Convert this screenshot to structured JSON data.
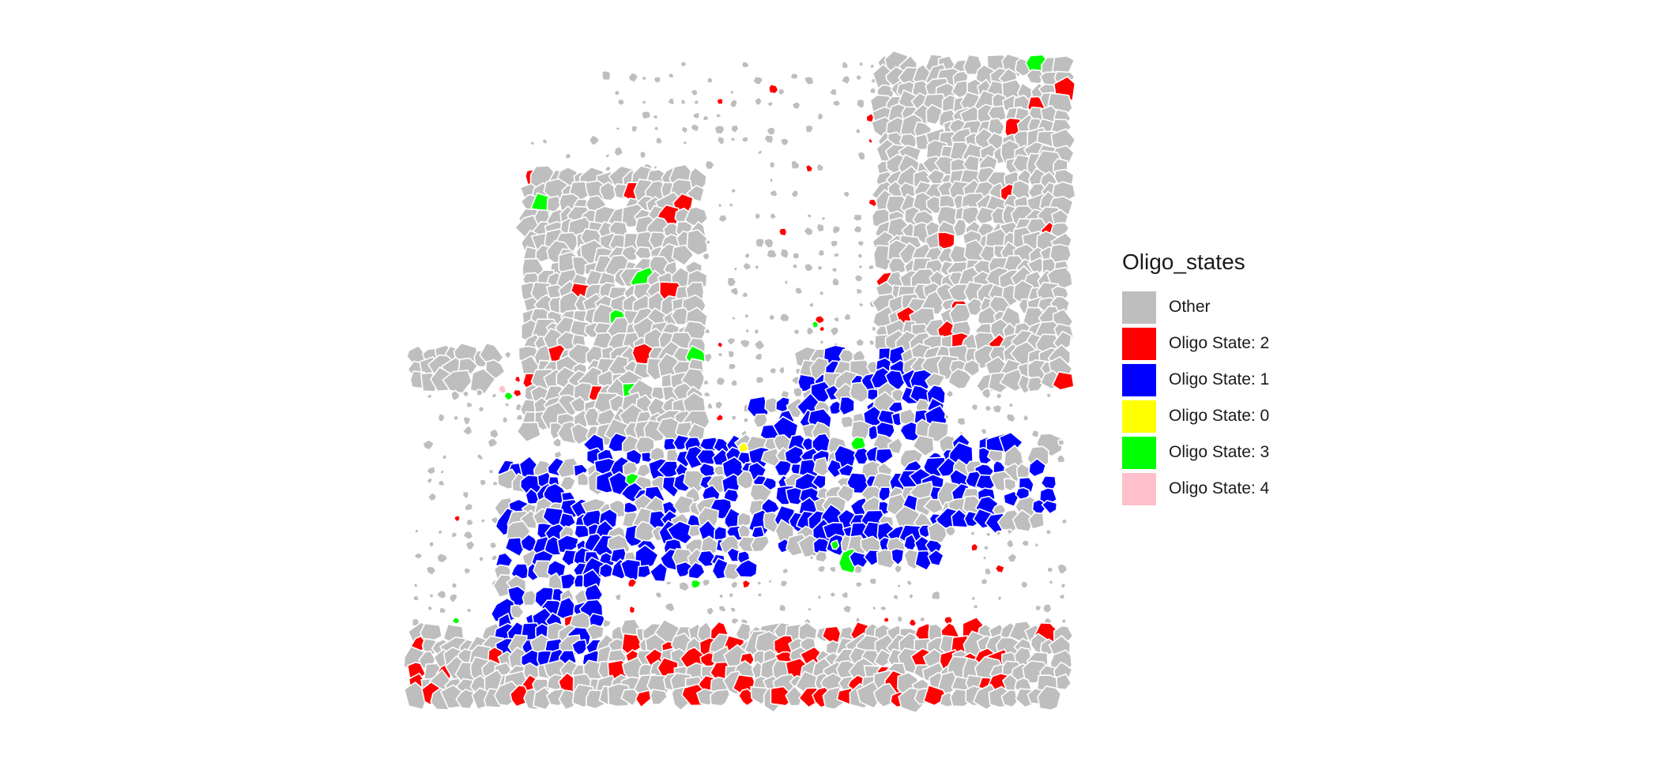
{
  "chart_data": {
    "type": "scatter",
    "title": "",
    "xlabel": "",
    "ylabel": "",
    "grid": false,
    "axes": false,
    "legend_position": "right",
    "legend": {
      "title": "Oligo_states",
      "entries": [
        {
          "label": "Other",
          "color": "#BEBEBE"
        },
        {
          "label": "Oligo State: 2",
          "color": "#FF0000"
        },
        {
          "label": "Oligo State: 1",
          "color": "#0000FF"
        },
        {
          "label": "Oligo State: 0",
          "color": "#FFFF00"
        },
        {
          "label": "Oligo State: 3",
          "color": "#00FF00"
        },
        {
          "label": "Oligo State: 4",
          "color": "#FFC0CB"
        }
      ]
    },
    "cell_border_color": "#FFFFFF",
    "note_regions": [
      {
        "category": "Oligo State: 1",
        "x": [
          [
            0.14,
            0.3
          ],
          [
            0.3,
            0.55
          ],
          [
            0.52,
            0.86
          ],
          [
            0.6,
            0.78
          ]
        ],
        "y": [
          [
            0.63,
            0.94
          ],
          [
            0.55,
            0.8
          ],
          [
            0.52,
            0.79
          ],
          [
            0.45,
            0.62
          ]
        ]
      }
    ]
  }
}
